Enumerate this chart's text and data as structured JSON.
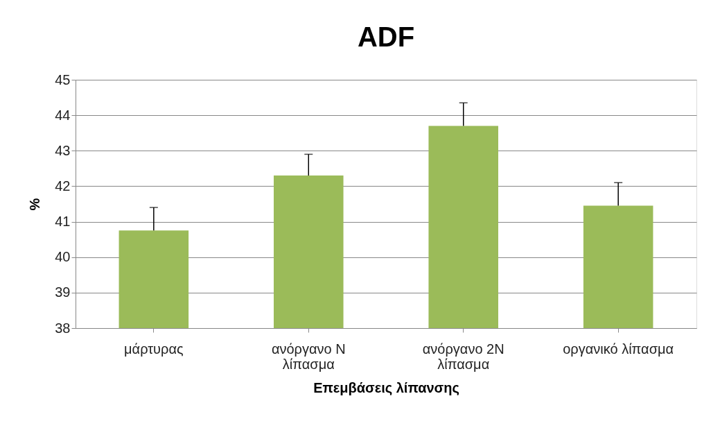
{
  "chart_data": {
    "type": "bar",
    "title": "ADF",
    "xlabel": "Επεμβάσεις λίπανσης",
    "ylabel": "%",
    "categories": [
      "μάρτυρας",
      "ανόργανο N λίπασμα",
      "ανόργανο 2N λίπασμα",
      "οργανικό λίπασμα"
    ],
    "values": [
      40.75,
      42.3,
      43.7,
      41.45
    ],
    "errors": [
      [
        40.75,
        41.4
      ],
      [
        42.3,
        42.9
      ],
      [
        43.7,
        44.35
      ],
      [
        41.45,
        42.1
      ]
    ],
    "color": "#9bbb59",
    "ylim": [
      38,
      45
    ],
    "yticks": [
      38,
      39,
      40,
      41,
      42,
      43,
      44,
      45
    ],
    "grid": "y"
  }
}
